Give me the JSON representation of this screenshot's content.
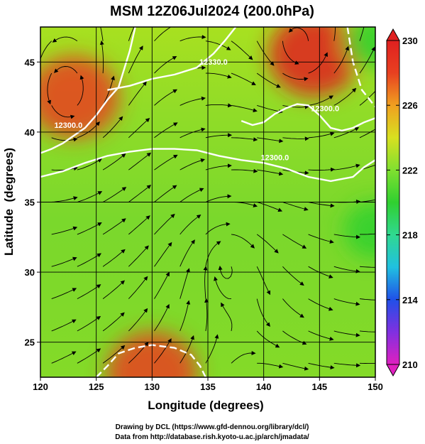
{
  "chart_data": {
    "type": "heatmap",
    "title": "MSM 12Z06Jul2024 (200.0hPa)",
    "xlabel": "Longitude (degrees)",
    "ylabel": "Latitude  (degrees)",
    "xlim": [
      120,
      150
    ],
    "ylim": [
      22.5,
      47.5
    ],
    "xticks": [
      120,
      125,
      130,
      135,
      140,
      145,
      150
    ],
    "yticks": [
      25,
      30,
      35,
      40,
      45
    ],
    "grid": true,
    "colorbar": {
      "min": 210,
      "max": 230,
      "ticks": [
        210,
        214,
        218,
        222,
        226,
        230
      ],
      "placement": "right",
      "colors": [
        "#e020c0",
        "#8030e0",
        "#2050e8",
        "#20c0e0",
        "#30d890",
        "#30d030",
        "#80e030",
        "#d8e020",
        "#f0a020",
        "#e84020",
        "#e02020"
      ]
    },
    "field_features": [
      {
        "kind": "warm",
        "lon": 123,
        "lat": 42.5,
        "value": 228
      },
      {
        "kind": "warm",
        "lon": 144.5,
        "lat": 45.5,
        "value": 229
      },
      {
        "kind": "warm",
        "lon": 130,
        "lat": 22.8,
        "value": 227
      },
      {
        "kind": "cool",
        "lon": 150,
        "lat": 46.5,
        "value": 219
      },
      {
        "kind": "cool",
        "lon": 150,
        "lat": 33,
        "value": 220
      }
    ],
    "contours": [
      {
        "label": "12300.0",
        "points": [
          [
            120,
            38.5
          ],
          [
            121,
            38.8
          ],
          [
            122,
            39.2
          ],
          [
            124,
            40.3
          ],
          [
            125,
            41.2
          ],
          [
            126,
            42.3
          ],
          [
            127,
            43.2
          ],
          [
            127.5,
            44.5
          ],
          [
            128,
            45.8
          ],
          [
            128.5,
            47.5
          ]
        ]
      },
      {
        "label": "12300.0",
        "points": [
          [
            120,
            36.8
          ],
          [
            122,
            37.2
          ],
          [
            124,
            37.8
          ],
          [
            126,
            38.3
          ],
          [
            128,
            38.6
          ],
          [
            130,
            38.8
          ],
          [
            132,
            38.8
          ],
          [
            134,
            38.7
          ],
          [
            136,
            38.3
          ],
          [
            138,
            38.0
          ],
          [
            140,
            37.8
          ],
          [
            142,
            37.4
          ],
          [
            144,
            36.8
          ],
          [
            146,
            36.5
          ],
          [
            148,
            36.8
          ],
          [
            149,
            37.5
          ],
          [
            150,
            38.0
          ]
        ]
      },
      {
        "label": "12330.0",
        "points": [
          [
            126,
            43.0
          ],
          [
            128,
            43.3
          ],
          [
            130,
            43.8
          ],
          [
            132,
            44.1
          ],
          [
            134,
            44.6
          ],
          [
            135.5,
            45.6
          ],
          [
            136.5,
            46.5
          ],
          [
            137.5,
            47.5
          ]
        ]
      },
      {
        "label": "12300.0",
        "points": [
          [
            138,
            40.8
          ],
          [
            139,
            40.5
          ],
          [
            140,
            40.7
          ],
          [
            141,
            41.3
          ],
          [
            142,
            41.7
          ],
          [
            143,
            42.0
          ],
          [
            144,
            41.9
          ],
          [
            145,
            41.2
          ],
          [
            146,
            40.3
          ],
          [
            147,
            40.1
          ],
          [
            148,
            40.3
          ],
          [
            149,
            40.7
          ],
          [
            150,
            41.0
          ]
        ]
      },
      {
        "label": "",
        "points": [
          [
            147.5,
            47.5
          ],
          [
            148,
            45.0
          ],
          [
            148.8,
            43.0
          ],
          [
            150,
            41.8
          ]
        ]
      },
      {
        "label": "",
        "points": [
          [
            125,
            22.5
          ],
          [
            126,
            23.3
          ],
          [
            127,
            24.2
          ],
          [
            128.5,
            24.6
          ],
          [
            130,
            24.8
          ],
          [
            132,
            24.6
          ],
          [
            133.5,
            24.1
          ],
          [
            134.3,
            23.3
          ],
          [
            134.8,
            22.5
          ]
        ]
      }
    ],
    "contour_label_positions": [
      {
        "text": "12300.0",
        "lon": 122.5,
        "lat": 40.3
      },
      {
        "text": "12300.0",
        "lon": 141.0,
        "lat": 38.0
      },
      {
        "text": "12330.0",
        "lon": 135.5,
        "lat": 44.8
      },
      {
        "text": "12300.0",
        "lon": 145.5,
        "lat": 41.5
      }
    ],
    "flow_centers": [
      {
        "kind": "anticyclone",
        "lon": 136.5,
        "lat": 31.5
      },
      {
        "kind": "cyclone",
        "lon": 143.5,
        "lat": 45.5
      },
      {
        "kind": "cyclone",
        "lon": 122.5,
        "lat": 42.0
      }
    ]
  },
  "footer": {
    "line1": "Drawing by DCL (https://www.gfd-dennou.org/library/dcl/)",
    "line2": "Data from http://database.rish.kyoto-u.ac.jp/arch/jmadata/"
  }
}
